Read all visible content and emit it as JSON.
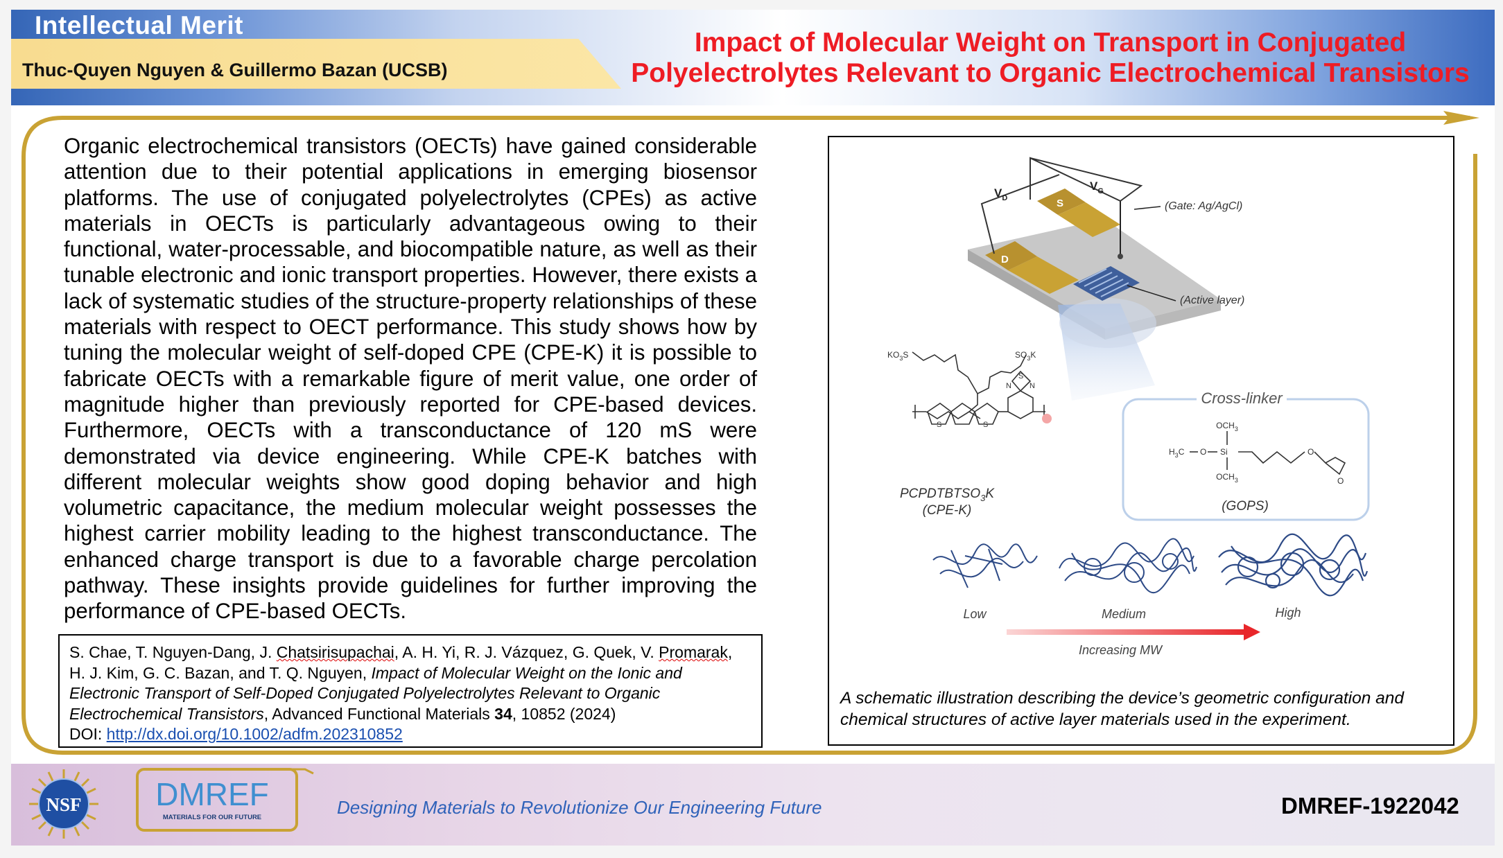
{
  "header": {
    "section_label": "Intellectual Merit",
    "authors": "Thuc-Quyen Nguyen & Guillermo Bazan (UCSB)",
    "title_line1": "Impact of Molecular Weight on Transport in Conjugated",
    "title_line2": "Polyelectrolytes Relevant to Organic Electrochemical Transistors"
  },
  "body": {
    "text": "Organic electrochemical transistors (OECTs) have gained considerable attention due to their potential applications in emerging biosensor platforms. The use of conjugated polyelectrolytes (CPEs) as active materials in OECTs is particularly advantageous owing to their functional, water-processable, and biocompatible nature, as well as their tunable electronic and ionic transport properties. However, there exists a lack of systematic studies of the structure-property relationships of these materials with respect to OECT performance. This study shows how by tuning the molecular weight of self-doped CPE (CPE-K) it is possible to fabricate OECTs with a remarkable figure of merit value, one order of magnitude higher than previously reported for CPE-based devices. Furthermore, OECTs with a transconductance of 120 mS were demonstrated via device engineering. While CPE-K batches with different molecular weights show good doping behavior and high volumetric capacitance, the medium molecular weight possesses the highest carrier mobility leading to the highest transconductance. The enhanced charge transport is due to a favorable charge percolation pathway. These insights provide guidelines for further improving the performance of CPE-based OECTs."
  },
  "citation": {
    "authors_a": "S. Chae, T. Nguyen-Dang, J. ",
    "authors_b": "Chatsirisupachai",
    "authors_c": ", A. H. Yi, R. J. Vázquez, G. Quek, V. ",
    "authors_d": "Promarak",
    "authors_e": ", H. J. Kim, G. C. Bazan, and T. Q. Nguyen, ",
    "paper_title": "Impact of Molecular Weight on the Ionic and Electronic Transport of Self-Doped Conjugated Polyelectrolytes Relevant to Organic Electrochemical Transistors",
    "journal": ", Advanced Functional Materials ",
    "volume": "34",
    "pages": ", 10852 (2024)",
    "doi_label": "DOI: ",
    "doi_link": "http://dx.doi.org/10.1002/adfm.202310852"
  },
  "figure": {
    "vg_label": "V",
    "vg_sub": "G",
    "vd_label": "V",
    "vd_sub": "D",
    "s_label": "S",
    "d_label": "D",
    "gate_label": "(Gate: Ag/AgCl)",
    "active_label": "(Active layer)",
    "crosslinker_title": "Cross-linker",
    "cpe_name": "PCPDTBTSO",
    "cpe_name_sub": "3",
    "cpe_name_end": "K",
    "cpe_abbrev": "(CPE-K)",
    "gops_label": "(GOPS)",
    "so3k_left": "KO",
    "so3k_left_sub": "3",
    "so3k_left_end": "S",
    "so3k_right": "SO",
    "so3k_right_sub": "3",
    "so3k_right_end": "K",
    "och3_top": "OCH",
    "och3_sub": "3",
    "h3c": "H",
    "h3c_sub": "3",
    "h3c_end": "C",
    "atom_o": "O",
    "atom_si": "Si",
    "atom_s": "S",
    "atom_n": "N",
    "mw_low": "Low",
    "mw_medium": "Medium",
    "mw_high": "High",
    "mw_axis": "Increasing MW",
    "caption": "A schematic illustration describing the device’s geometric configuration and chemical structures of active layer materials used in the experiment."
  },
  "footer": {
    "nsf_label": "NSF",
    "dmref_label": "DMREF",
    "dmref_sub": "MATERIALS FOR OUR FUTURE",
    "tagline": "Designing Materials to Revolutionize Our Engineering Future",
    "award": "DMREF-1922042"
  },
  "colors": {
    "title_red": "#ee1c24",
    "gold": "#c9a234",
    "tagline_blue": "#2f62b9",
    "link_blue": "#1a4fb0"
  }
}
